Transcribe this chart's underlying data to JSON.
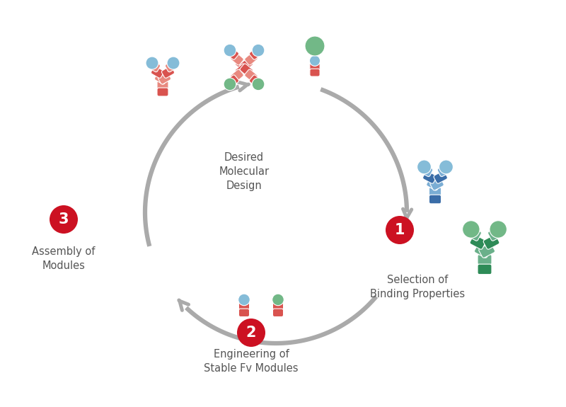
{
  "bg_color": "#ffffff",
  "arrow_color": "#aaaaaa",
  "red_color": "#cc1122",
  "white": "#ffffff",
  "label_color": "#555555",
  "salmon_dark": "#d9534f",
  "salmon_light": "#e8897f",
  "blue_dark": "#3a6da8",
  "blue_light": "#7aadd4",
  "green_dark": "#2e8b57",
  "green_light": "#6ab08a",
  "ball_blue": "#85bcd8",
  "ball_green": "#72b887",
  "label0": "Desired\nMolecular\nDesign",
  "label1": "Selection of\nBinding Properties",
  "label2": "Engineering of\nStable Fv Modules",
  "label3": "Assembly of\nModules",
  "font_label": 10.5,
  "font_num": 15
}
